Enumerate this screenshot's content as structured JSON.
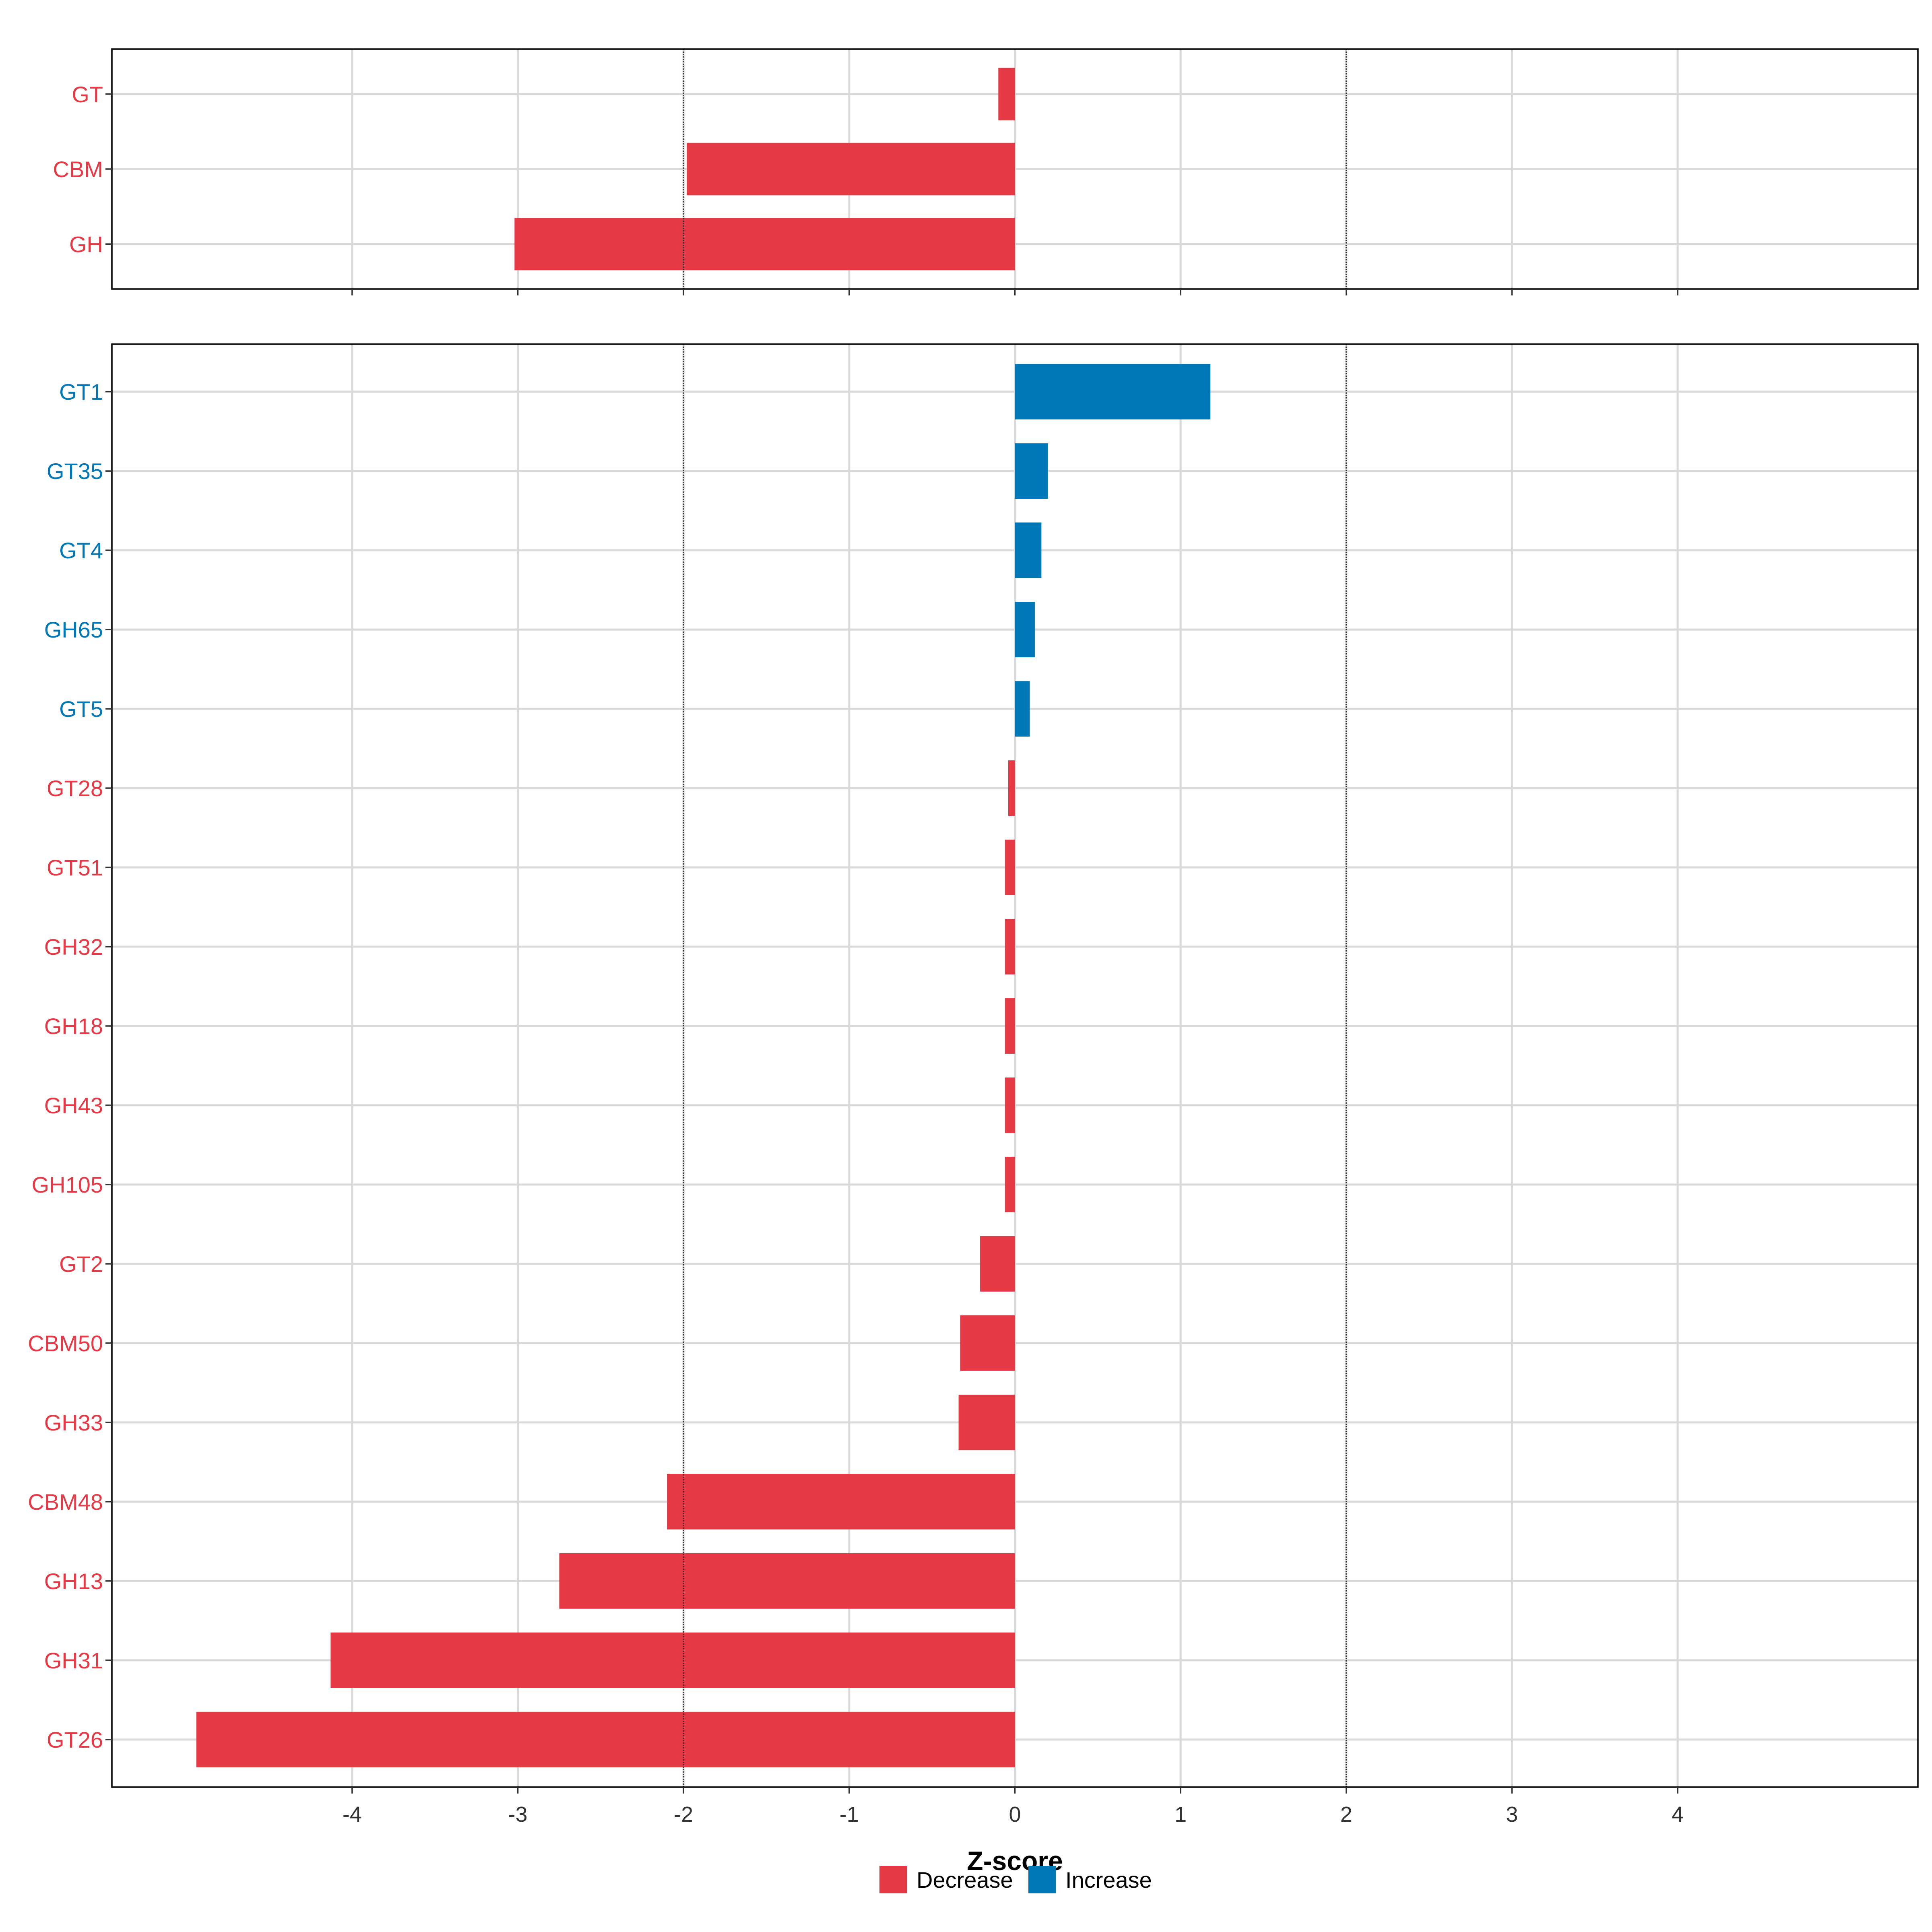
{
  "chart_data": {
    "type": "bar",
    "orientation": "horizontal",
    "xlabel": "Z-score",
    "xlim": [
      -5.45,
      5.45
    ],
    "x_ticks": [
      "-4",
      "-3",
      "-2",
      "-1",
      "0",
      "1",
      "2",
      "3",
      "4"
    ],
    "x_tick_values": [
      -4,
      -3,
      -2,
      -1,
      0,
      1,
      2,
      3,
      4
    ],
    "reference_lines": [
      -2,
      2
    ],
    "grid": true,
    "colors": {
      "Decrease": "#e63946",
      "Increase": "#0077b6"
    },
    "legend": {
      "position": "bottom",
      "entries": [
        {
          "label": "Decrease",
          "color": "#e63946"
        },
        {
          "label": "Increase",
          "color": "#0077b6"
        }
      ]
    },
    "panels": [
      {
        "categories": [
          "GT",
          "CBM",
          "GH"
        ],
        "values": [
          -0.1,
          -1.98,
          -3.02
        ],
        "groups": [
          "Decrease",
          "Decrease",
          "Decrease"
        ]
      },
      {
        "categories": [
          "GT1",
          "GT35",
          "GT4",
          "GH65",
          "GT5",
          "GT28",
          "GT51",
          "GH32",
          "GH18",
          "GH43",
          "GH105",
          "GT2",
          "CBM50",
          "GH33",
          "CBM48",
          "GH13",
          "GH31",
          "GT26"
        ],
        "values": [
          1.18,
          0.2,
          0.16,
          0.12,
          0.09,
          -0.04,
          -0.06,
          -0.06,
          -0.06,
          -0.06,
          -0.06,
          -0.21,
          -0.33,
          -0.34,
          -2.1,
          -2.75,
          -4.13,
          -4.94
        ],
        "groups": [
          "Increase",
          "Increase",
          "Increase",
          "Increase",
          "Increase",
          "Decrease",
          "Decrease",
          "Decrease",
          "Decrease",
          "Decrease",
          "Decrease",
          "Decrease",
          "Decrease",
          "Decrease",
          "Decrease",
          "Decrease",
          "Decrease",
          "Decrease"
        ]
      }
    ]
  }
}
